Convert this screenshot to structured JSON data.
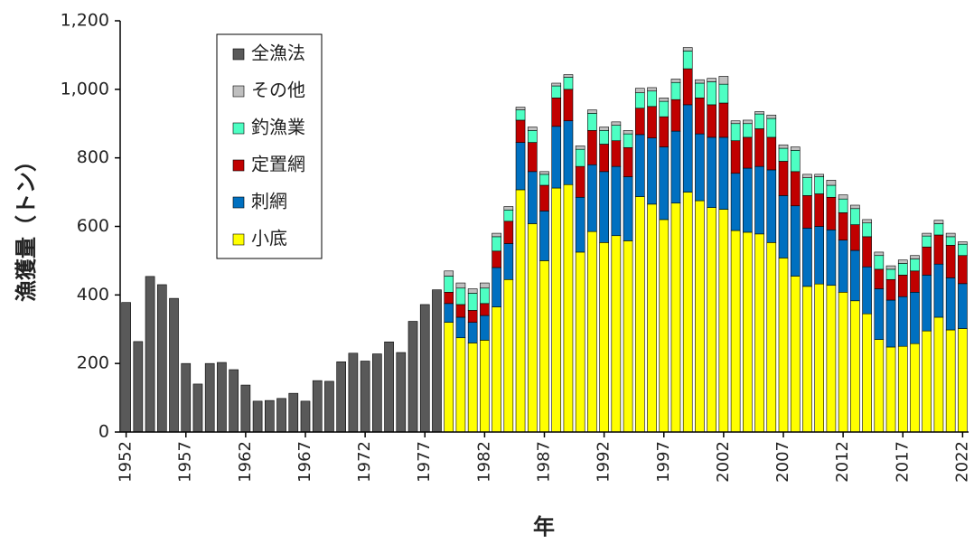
{
  "chart_data": {
    "type": "stacked-bar",
    "y_label": "漁獲量（トン）",
    "x_label": "年",
    "categories": [
      "1952",
      null,
      null,
      null,
      null,
      "1957",
      null,
      null,
      null,
      null,
      "1962",
      null,
      null,
      null,
      null,
      "1967",
      null,
      null,
      null,
      null,
      "1972",
      null,
      null,
      null,
      null,
      "1977",
      null,
      null,
      null,
      null,
      "1982",
      null,
      null,
      null,
      null,
      "1987",
      null,
      null,
      null,
      null,
      "1992",
      null,
      null,
      null,
      null,
      "1997",
      null,
      null,
      null,
      null,
      "2002",
      null,
      null,
      null,
      null,
      "2007",
      null,
      null,
      null,
      null,
      "2012",
      null,
      null,
      null,
      null,
      "2017",
      null,
      null,
      null,
      null,
      "2022"
    ],
    "series": [
      {
        "name": "全漁法",
        "color": "#595959",
        "values": [
          378,
          264,
          454,
          430,
          390,
          200,
          140,
          200,
          203,
          182,
          137,
          90,
          92,
          98,
          113,
          90,
          150,
          148,
          205,
          230,
          207,
          228,
          263,
          232,
          323,
          372,
          415,
          null,
          null,
          null,
          null,
          null,
          null,
          null,
          null,
          null,
          null,
          null,
          null,
          null,
          null,
          null,
          null,
          null,
          null,
          null,
          null,
          null,
          null,
          null,
          null,
          null,
          null,
          null,
          null,
          null,
          null,
          null,
          null,
          null,
          null,
          null,
          null,
          null,
          null,
          null,
          null,
          null,
          null,
          null,
          null
        ]
      },
      {
        "name": "その他",
        "color": "#bfbfbf",
        "values": [
          null,
          null,
          null,
          null,
          null,
          null,
          null,
          null,
          null,
          null,
          null,
          null,
          null,
          null,
          null,
          null,
          null,
          null,
          null,
          null,
          null,
          null,
          null,
          null,
          null,
          null,
          null,
          15,
          15,
          13,
          15,
          10,
          10,
          8,
          10,
          8,
          8,
          8,
          10,
          10,
          10,
          10,
          10,
          13,
          10,
          10,
          10,
          10,
          10,
          10,
          23,
          8,
          10,
          7,
          10,
          10,
          10,
          10,
          7,
          15,
          12,
          10,
          10,
          10,
          10,
          10,
          10,
          8,
          10,
          10,
          7
        ]
      },
      {
        "name": "釣漁業",
        "color": "#4dffc3",
        "values": [
          null,
          null,
          null,
          null,
          null,
          null,
          null,
          null,
          null,
          null,
          null,
          null,
          null,
          null,
          null,
          null,
          null,
          null,
          null,
          null,
          null,
          null,
          null,
          null,
          null,
          null,
          null,
          47,
          48,
          50,
          45,
          42,
          33,
          30,
          35,
          32,
          35,
          35,
          50,
          50,
          40,
          45,
          40,
          45,
          45,
          45,
          50,
          52,
          43,
          67,
          55,
          50,
          40,
          43,
          55,
          38,
          62,
          52,
          50,
          35,
          40,
          47,
          40,
          40,
          30,
          34,
          35,
          32,
          33,
          25,
          33
        ]
      },
      {
        "name": "定置網",
        "color": "#c00000",
        "values": [
          null,
          null,
          null,
          null,
          null,
          null,
          null,
          null,
          null,
          null,
          null,
          null,
          null,
          null,
          null,
          null,
          null,
          null,
          null,
          null,
          null,
          null,
          null,
          null,
          null,
          null,
          null,
          33,
          37,
          35,
          35,
          48,
          65,
          65,
          85,
          75,
          83,
          92,
          90,
          100,
          80,
          75,
          85,
          77,
          92,
          88,
          92,
          105,
          105,
          95,
          100,
          95,
          90,
          110,
          95,
          100,
          100,
          95,
          95,
          95,
          80,
          75,
          88,
          57,
          60,
          63,
          62,
          82,
          85,
          95,
          82
        ]
      },
      {
        "name": "刺網",
        "color": "#0070c0",
        "values": [
          null,
          null,
          null,
          null,
          null,
          null,
          null,
          null,
          null,
          null,
          null,
          null,
          null,
          null,
          null,
          null,
          null,
          null,
          null,
          null,
          null,
          null,
          null,
          null,
          null,
          null,
          null,
          55,
          60,
          60,
          72,
          115,
          105,
          138,
          152,
          145,
          180,
          186,
          160,
          195,
          207,
          202,
          187,
          181,
          193,
          212,
          210,
          255,
          195,
          205,
          210,
          167,
          187,
          197,
          212,
          182,
          205,
          170,
          168,
          162,
          152,
          147,
          137,
          148,
          137,
          145,
          150,
          163,
          155,
          152,
          131
        ]
      },
      {
        "name": "小底",
        "color": "#ffff00",
        "values": [
          null,
          null,
          null,
          null,
          null,
          null,
          null,
          null,
          null,
          null,
          null,
          null,
          null,
          null,
          null,
          null,
          null,
          null,
          null,
          null,
          null,
          null,
          null,
          null,
          null,
          null,
          null,
          320,
          275,
          260,
          268,
          365,
          445,
          707,
          608,
          500,
          712,
          722,
          525,
          585,
          553,
          573,
          558,
          687,
          665,
          620,
          668,
          700,
          675,
          655,
          650,
          588,
          583,
          578,
          553,
          508,
          455,
          425,
          432,
          428,
          408,
          383,
          345,
          270,
          248,
          250,
          258,
          295,
          335,
          298,
          302
        ]
      }
    ],
    "ylim": [
      0,
      1200
    ],
    "yticks": [
      0,
      200,
      400,
      600,
      800,
      {
        "value": 1000,
        "label": "1,000"
      },
      {
        "value": 1200,
        "label": "1,200"
      }
    ],
    "legend": "upper-left"
  }
}
